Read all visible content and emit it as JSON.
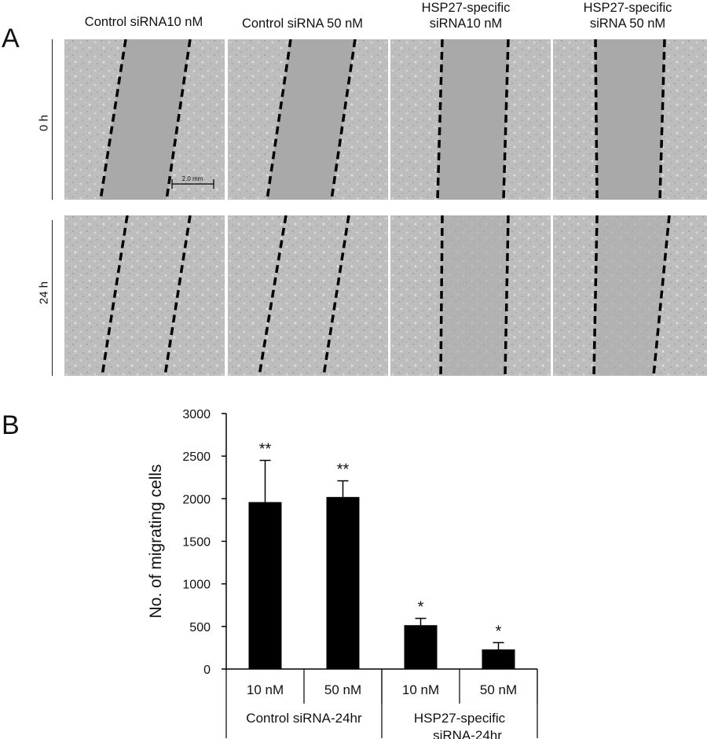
{
  "panel_a": {
    "letter": "A",
    "column_titles": [
      "Control siRNA10  nM",
      "Control siRNA 50  nM",
      "HSP27-specific\nsiRNA10  nM",
      "HSP27-specific\nsiRNA 50  nM"
    ],
    "row_labels": [
      "0 h",
      "24 h"
    ],
    "scale_bar_label": "2.0 mm"
  },
  "panel_b": {
    "letter": "B"
  },
  "chart_data": {
    "type": "bar",
    "title": "",
    "ylabel": "No. of migrating cells",
    "xlabel": "",
    "ylim": [
      0,
      3000
    ],
    "yticks": [
      0,
      500,
      1000,
      1500,
      2000,
      2500,
      3000
    ],
    "categories": [
      "10 nM",
      "50 nM",
      "10 nM",
      "50 nM"
    ],
    "groups": [
      {
        "label": "Control siRNA-24hr",
        "categories": [
          0,
          1
        ]
      },
      {
        "label": "HSP27-specific\nsiRNA-24hr",
        "categories": [
          2,
          3
        ]
      }
    ],
    "values": [
      1960,
      2020,
      515,
      230
    ],
    "errors": [
      490,
      190,
      80,
      80
    ],
    "significance": [
      "**",
      "**",
      "*",
      "*"
    ],
    "bar_color": "#000000",
    "grid": false
  }
}
